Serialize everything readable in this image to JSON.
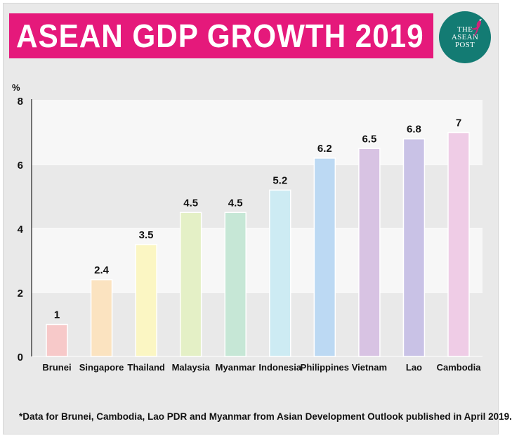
{
  "header": {
    "title": "ASEAN GDP GROWTH 2019",
    "logo_lines": [
      "THE",
      "ASEAN",
      "POST"
    ],
    "banner_color": "#e5197b",
    "logo_color": "#137b73"
  },
  "footnote": "*Data for Brunei, Cambodia, Lao PDR and Myanmar from Asian Development Outlook published in April 2019.",
  "chart_data": {
    "type": "bar",
    "title": "ASEAN GDP GROWTH 2019",
    "ylabel": "%",
    "xlabel": "",
    "ylim": [
      0,
      8
    ],
    "yticks": [
      0,
      2,
      4,
      6,
      8
    ],
    "grid": "horizontal alternating bands",
    "categories": [
      "Brunei",
      "Singapore",
      "Thailand",
      "Malaysia",
      "Myanmar",
      "Indonesia",
      "Philippines",
      "Vietnam",
      "Lao",
      "Cambodia"
    ],
    "values": [
      1,
      2.4,
      3.5,
      4.5,
      4.5,
      5.2,
      6.2,
      6.5,
      6.8,
      7
    ],
    "value_labels": [
      "1",
      "2.4",
      "3.5",
      "4.5",
      "4.5",
      "5.2",
      "6.2",
      "6.5",
      "6.8",
      "7"
    ],
    "colors": [
      "#f7c9c9",
      "#fbe3c0",
      "#fbf6c3",
      "#e4f0c6",
      "#c6e7d6",
      "#cdebf3",
      "#bcd9f3",
      "#d8c3e3",
      "#c9c2e6",
      "#efcce6"
    ]
  }
}
